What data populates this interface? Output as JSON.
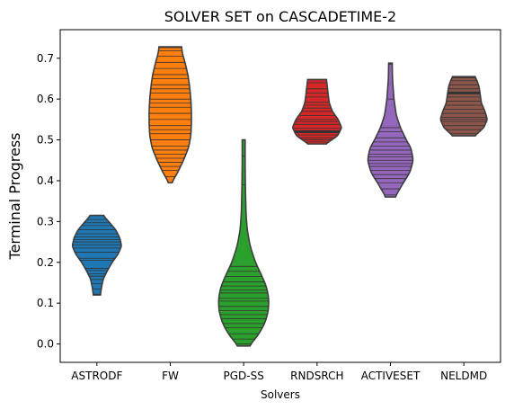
{
  "chart_data": {
    "type": "violin",
    "title": "SOLVER SET on CASCADETIME-2",
    "xlabel": "Solvers",
    "ylabel": "Terminal Progress",
    "ylim": [
      -0.045,
      0.77
    ],
    "yticks": [
      0.0,
      0.1,
      0.2,
      0.3,
      0.4,
      0.5,
      0.6,
      0.7
    ],
    "ytick_labels": [
      "0.0",
      "0.1",
      "0.2",
      "0.3",
      "0.4",
      "0.5",
      "0.6",
      "0.7"
    ],
    "grid": false,
    "inner": "stick",
    "cut": 0,
    "categories": [
      "ASTRODF",
      "FW",
      "PGD-SS",
      "RNDSRCH",
      "ACTIVESET",
      "NELDMD"
    ],
    "series": [
      {
        "color": "#1f77b4",
        "profile": [
          [
            0.12,
            0.12
          ],
          [
            0.14,
            0.16
          ],
          [
            0.16,
            0.22
          ],
          [
            0.18,
            0.36
          ],
          [
            0.2,
            0.52
          ],
          [
            0.22,
            0.72
          ],
          [
            0.24,
            0.84
          ],
          [
            0.26,
            0.78
          ],
          [
            0.28,
            0.64
          ],
          [
            0.3,
            0.4
          ],
          [
            0.315,
            0.22
          ]
        ],
        "values": [
          0.122,
          0.135,
          0.148,
          0.158,
          0.166,
          0.172,
          0.18,
          0.185,
          0.205,
          0.21,
          0.225,
          0.235,
          0.243,
          0.25,
          0.256,
          0.262,
          0.27,
          0.28,
          0.29,
          0.297,
          0.305
        ],
        "bold_values": []
      },
      {
        "color": "#ff7f0e",
        "profile": [
          [
            0.395,
            0.05
          ],
          [
            0.42,
            0.25
          ],
          [
            0.45,
            0.45
          ],
          [
            0.48,
            0.62
          ],
          [
            0.51,
            0.7
          ],
          [
            0.54,
            0.72
          ],
          [
            0.57,
            0.72
          ],
          [
            0.6,
            0.7
          ],
          [
            0.63,
            0.66
          ],
          [
            0.66,
            0.6
          ],
          [
            0.69,
            0.5
          ],
          [
            0.71,
            0.42
          ],
          [
            0.728,
            0.38
          ]
        ],
        "values": [
          0.41,
          0.425,
          0.435,
          0.445,
          0.455,
          0.465,
          0.475,
          0.485,
          0.5,
          0.515,
          0.525,
          0.535,
          0.55,
          0.565,
          0.58,
          0.59,
          0.6,
          0.615,
          0.625,
          0.635,
          0.65,
          0.66,
          0.675,
          0.69,
          0.705,
          0.718,
          0.726
        ],
        "bold_values": []
      },
      {
        "color": "#2ca02c",
        "profile": [
          [
            -0.005,
            0.18
          ],
          [
            0.02,
            0.48
          ],
          [
            0.05,
            0.72
          ],
          [
            0.08,
            0.84
          ],
          [
            0.11,
            0.86
          ],
          [
            0.14,
            0.78
          ],
          [
            0.17,
            0.6
          ],
          [
            0.2,
            0.4
          ],
          [
            0.24,
            0.22
          ],
          [
            0.28,
            0.12
          ],
          [
            0.32,
            0.08
          ],
          [
            0.38,
            0.06
          ],
          [
            0.44,
            0.05
          ],
          [
            0.5,
            0.05
          ]
        ],
        "values": [
          0.0,
          0.012,
          0.025,
          0.04,
          0.05,
          0.062,
          0.072,
          0.082,
          0.092,
          0.105,
          0.112,
          0.125,
          0.132,
          0.142,
          0.152,
          0.165,
          0.178,
          0.19,
          0.39,
          0.46
        ],
        "bold_values": []
      },
      {
        "color": "#d62728",
        "profile": [
          [
            0.49,
            0.3
          ],
          [
            0.51,
            0.7
          ],
          [
            0.53,
            0.84
          ],
          [
            0.55,
            0.72
          ],
          [
            0.57,
            0.52
          ],
          [
            0.59,
            0.42
          ],
          [
            0.61,
            0.38
          ],
          [
            0.63,
            0.35
          ],
          [
            0.648,
            0.32
          ]
        ],
        "values": [
          0.495,
          0.5,
          0.505,
          0.512,
          0.528,
          0.538,
          0.545,
          0.55,
          0.56,
          0.57,
          0.578,
          0.585,
          0.592,
          0.605,
          0.615,
          0.625,
          0.64
        ],
        "bold_values": [
          0.52
        ]
      },
      {
        "color": "#9467bd",
        "profile": [
          [
            0.36,
            0.16
          ],
          [
            0.39,
            0.4
          ],
          [
            0.42,
            0.66
          ],
          [
            0.45,
            0.78
          ],
          [
            0.48,
            0.7
          ],
          [
            0.5,
            0.54
          ],
          [
            0.53,
            0.34
          ],
          [
            0.56,
            0.2
          ],
          [
            0.6,
            0.12
          ],
          [
            0.65,
            0.07
          ],
          [
            0.688,
            0.06
          ]
        ],
        "values": [
          0.365,
          0.38,
          0.395,
          0.405,
          0.415,
          0.425,
          0.435,
          0.442,
          0.45,
          0.458,
          0.465,
          0.475,
          0.485,
          0.495,
          0.505,
          0.52,
          0.53,
          0.6,
          0.685
        ],
        "bold_values": []
      },
      {
        "color": "#8c564b",
        "profile": [
          [
            0.51,
            0.38
          ],
          [
            0.53,
            0.68
          ],
          [
            0.55,
            0.8
          ],
          [
            0.57,
            0.72
          ],
          [
            0.59,
            0.6
          ],
          [
            0.61,
            0.56
          ],
          [
            0.63,
            0.52
          ],
          [
            0.645,
            0.45
          ],
          [
            0.655,
            0.38
          ]
        ],
        "values": [
          0.515,
          0.525,
          0.535,
          0.545,
          0.55,
          0.555,
          0.565,
          0.575,
          0.585,
          0.595,
          0.605,
          0.625,
          0.635,
          0.645,
          0.652
        ],
        "bold_values": [
          0.615
        ]
      }
    ]
  }
}
